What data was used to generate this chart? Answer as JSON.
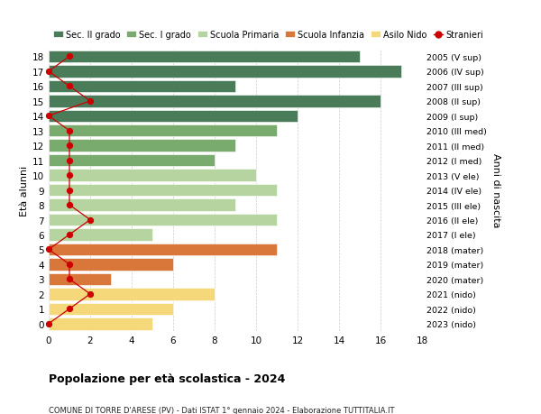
{
  "ages": [
    18,
    17,
    16,
    15,
    14,
    13,
    12,
    11,
    10,
    9,
    8,
    7,
    6,
    5,
    4,
    3,
    2,
    1,
    0
  ],
  "years": [
    "2005 (V sup)",
    "2006 (IV sup)",
    "2007 (III sup)",
    "2008 (II sup)",
    "2009 (I sup)",
    "2010 (III med)",
    "2011 (II med)",
    "2012 (I med)",
    "2013 (V ele)",
    "2014 (IV ele)",
    "2015 (III ele)",
    "2016 (II ele)",
    "2017 (I ele)",
    "2018 (mater)",
    "2019 (mater)",
    "2020 (mater)",
    "2021 (nido)",
    "2022 (nido)",
    "2023 (nido)"
  ],
  "bar_values": [
    15,
    17,
    9,
    16,
    12,
    11,
    9,
    8,
    10,
    11,
    9,
    11,
    5,
    11,
    6,
    3,
    8,
    6,
    5
  ],
  "bar_colors": [
    "#4a7c59",
    "#4a7c59",
    "#4a7c59",
    "#4a7c59",
    "#4a7c59",
    "#7aab6e",
    "#7aab6e",
    "#7aab6e",
    "#b5d4a0",
    "#b5d4a0",
    "#b5d4a0",
    "#b5d4a0",
    "#b5d4a0",
    "#d9763a",
    "#d9763a",
    "#d9763a",
    "#f5d87a",
    "#f5d87a",
    "#f5d87a"
  ],
  "stranieri": [
    1,
    0,
    1,
    2,
    0,
    1,
    1,
    1,
    1,
    1,
    1,
    2,
    1,
    0,
    1,
    1,
    2,
    1,
    0
  ],
  "stranieri_color": "#cc0000",
  "legend_labels": [
    "Sec. II grado",
    "Sec. I grado",
    "Scuola Primaria",
    "Scuola Infanzia",
    "Asilo Nido",
    "Stranieri"
  ],
  "legend_colors": [
    "#4a7c59",
    "#7aab6e",
    "#b5d4a0",
    "#d9763a",
    "#f5d87a",
    "#cc0000"
  ],
  "ylabel_left": "Età alunni",
  "ylabel_right": "Anni di nascita",
  "title": "Popolazione per età scolastica - 2024",
  "subtitle": "COMUNE DI TORRE D'ARESE (PV) - Dati ISTAT 1° gennaio 2024 - Elaborazione TUTTITALIA.IT",
  "xlim": [
    0,
    18
  ],
  "grid_color": "#cccccc"
}
